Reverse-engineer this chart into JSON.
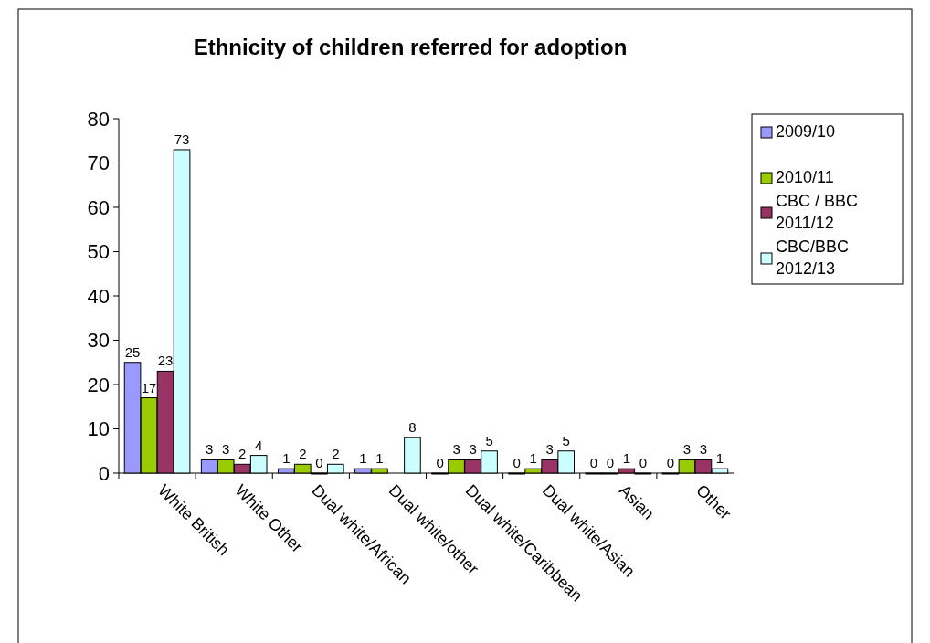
{
  "chart_data": {
    "type": "bar",
    "title": "Ethnicity of children referred for adoption",
    "categories": [
      "White British",
      "White Other",
      "Dual white/African",
      "Dual  white/other",
      "Dual white/Caribbean",
      "Dual  white/Asian",
      "Asian",
      "Other"
    ],
    "series": [
      {
        "name": "2009/10",
        "color": "#9999ff",
        "values": [
          25,
          3,
          1,
          1,
          0,
          0,
          0,
          0
        ]
      },
      {
        "name": "2010/11",
        "color": "#99cc00",
        "values": [
          17,
          3,
          2,
          1,
          3,
          1,
          0,
          3
        ]
      },
      {
        "name": "CBC / BBC\n2011/12",
        "color": "#993366",
        "values": [
          23,
          2,
          0,
          null,
          3,
          3,
          1,
          3
        ]
      },
      {
        "name": "CBC/BBC\n2012/13",
        "color": "#ccffff",
        "values": [
          73,
          4,
          2,
          8,
          5,
          5,
          0,
          1
        ]
      }
    ],
    "ylim": [
      0,
      80
    ],
    "yticks": [
      0,
      10,
      20,
      30,
      40,
      50,
      60,
      70,
      80
    ],
    "grid": false,
    "legend": "right",
    "data_labels": true
  }
}
